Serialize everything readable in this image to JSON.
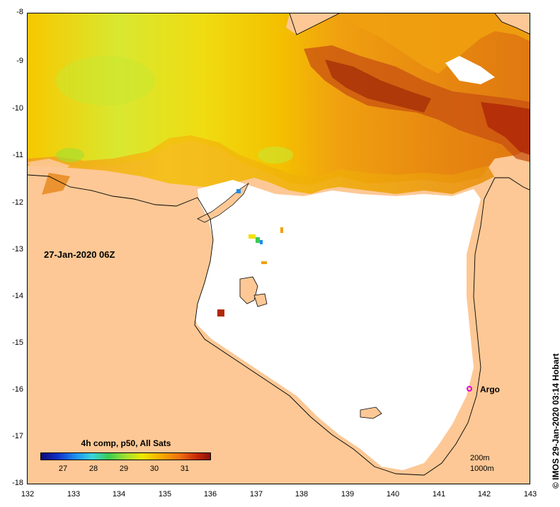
{
  "map": {
    "timestamp": "27-Jan-2020 06Z",
    "float_label": "Argo",
    "credit": "© IMOS 29-Jan-2020 03:14 Hobart",
    "lat_ticks": [
      "-8",
      "-9",
      "-10",
      "-11",
      "-12",
      "-13",
      "-14",
      "-15",
      "-16",
      "-17",
      "-18"
    ],
    "lon_ticks": [
      "132",
      "133",
      "134",
      "135",
      "136",
      "137",
      "138",
      "139",
      "140",
      "141",
      "142",
      "143"
    ],
    "colors": {
      "land": "#fdc895",
      "no_data": "#ffffff",
      "warm_orange": "#f0a000",
      "hot_red": "#b02808",
      "yellow": "#f8d000",
      "lime": "#c8e830",
      "argo_marker": "#e000e0"
    }
  },
  "legend": {
    "title": "4h comp, p50, All Sats",
    "ticks": [
      "27",
      "28",
      "29",
      "30",
      "31"
    ],
    "depth_contours": [
      "200m",
      "1000m"
    ]
  }
}
